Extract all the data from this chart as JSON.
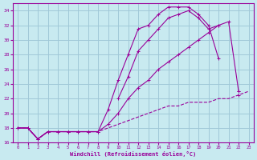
{
  "background_color": "#c8eaf0",
  "grid_color": "#a0c8d8",
  "line_color": "#990099",
  "xlabel": "Windchill (Refroidissement éolien,°C)",
  "xlim": [
    -0.5,
    23.5
  ],
  "ylim": [
    16,
    35
  ],
  "yticks": [
    16,
    18,
    20,
    22,
    24,
    26,
    28,
    30,
    32,
    34
  ],
  "xticks": [
    0,
    1,
    2,
    3,
    4,
    5,
    6,
    7,
    8,
    9,
    10,
    11,
    12,
    13,
    14,
    15,
    16,
    17,
    18,
    19,
    20,
    21,
    22,
    23
  ],
  "series": [
    {
      "x": [
        0,
        1,
        2,
        3,
        4,
        5,
        6,
        7,
        8,
        9,
        10,
        11,
        12,
        13,
        14,
        15,
        16,
        17,
        18,
        19,
        20,
        21,
        22,
        23
      ],
      "y": [
        18,
        18,
        16.5,
        17.5,
        17.5,
        17.5,
        17.5,
        17.5,
        17.5,
        18,
        18.5,
        19,
        19.5,
        20,
        20.5,
        21,
        21,
        21.5,
        21.5,
        21.5,
        22,
        22,
        22.5,
        23
      ],
      "marker": null,
      "linestyle": "--"
    },
    {
      "x": [
        0,
        1,
        2,
        3,
        4,
        5,
        6,
        7,
        8,
        9,
        10,
        11,
        12,
        13,
        14,
        15,
        16,
        17,
        18,
        19,
        20,
        21,
        22,
        23
      ],
      "y": [
        18,
        18,
        16.5,
        17.5,
        17.5,
        17.5,
        17.5,
        17.5,
        17.5,
        18.5,
        20,
        22,
        23.5,
        24.5,
        26,
        27,
        28,
        29,
        30,
        31,
        32,
        32.5,
        23,
        null
      ],
      "marker": "+",
      "linestyle": "-"
    },
    {
      "x": [
        0,
        1,
        2,
        3,
        4,
        5,
        6,
        7,
        8,
        9,
        10,
        11,
        12,
        13,
        14,
        15,
        16,
        17,
        18,
        19,
        20,
        21,
        22,
        23
      ],
      "y": [
        18,
        18,
        16.5,
        17.5,
        17.5,
        17.5,
        17.5,
        17.5,
        17.5,
        20.5,
        24.5,
        28,
        31.5,
        32,
        33.5,
        34.5,
        34.5,
        34.5,
        33.5,
        32,
        27.5,
        null,
        23,
        null
      ],
      "marker": "+",
      "linestyle": "-"
    },
    {
      "x": [
        0,
        1,
        2,
        3,
        4,
        5,
        6,
        7,
        8,
        9,
        10,
        11,
        12,
        13,
        14,
        15,
        16,
        17,
        18,
        19,
        20,
        21,
        22,
        23
      ],
      "y": [
        18,
        18,
        16.5,
        17.5,
        17.5,
        17.5,
        17.5,
        17.5,
        17.5,
        null,
        22,
        25,
        28.5,
        30,
        31.5,
        33,
        33.5,
        34,
        33,
        31.5,
        32,
        null,
        22.5,
        null
      ],
      "marker": "+",
      "linestyle": "-"
    }
  ]
}
